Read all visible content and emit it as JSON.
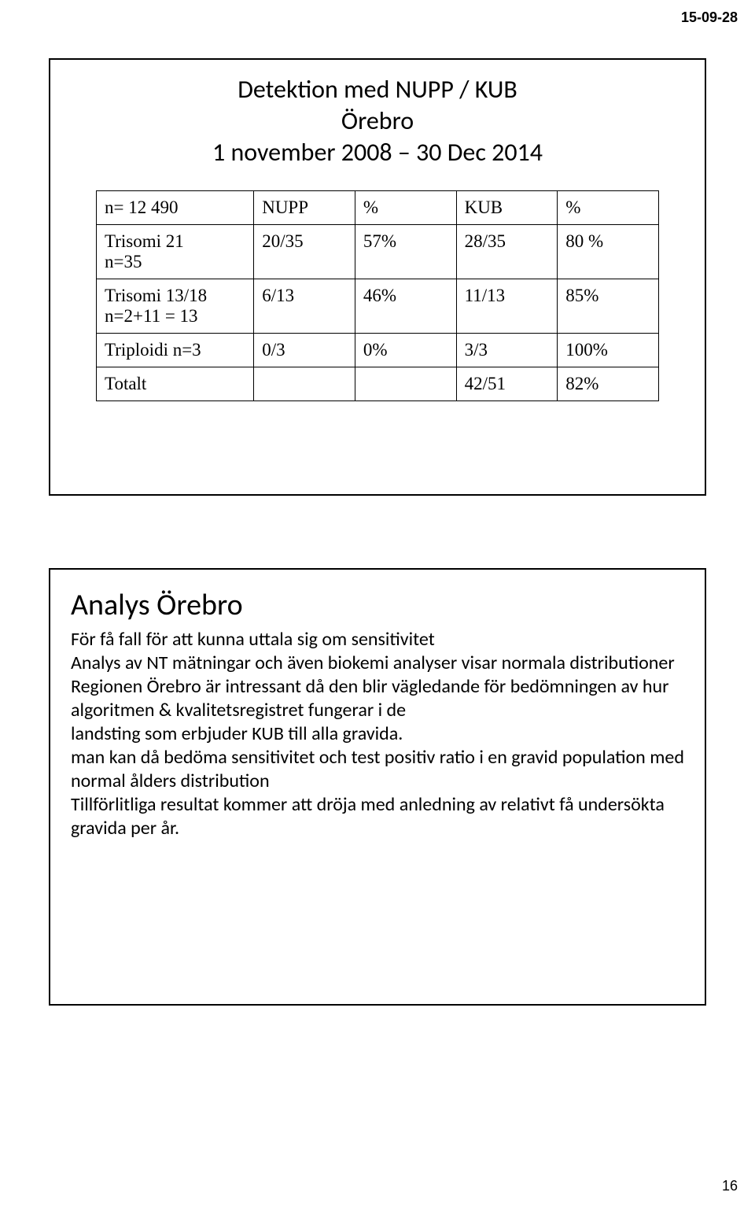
{
  "meta": {
    "date_header": "15-09-28",
    "page_number": "16"
  },
  "panel1": {
    "title_line1": "Detektion med  NUPP / KUB",
    "title_line2": "Örebro",
    "title_line3": "1 november 2008 – 30 Dec  2014",
    "table": {
      "headers": [
        "n= 12 490",
        "NUPP",
        "%",
        "KUB",
        "%"
      ],
      "rows": [
        {
          "label_l1": "Trisomi 21",
          "label_l2": "n=35",
          "c1": "20/35",
          "c2": "57%",
          "c3": "28/35",
          "c4": "80 %"
        },
        {
          "label_l1": "Trisomi 13/18",
          "label_l2": "n=2+11 = 13",
          "c1": "6/13",
          "c2": "46%",
          "c3": "11/13",
          "c4": "85%"
        },
        {
          "label_l1": "Triploidi n=3",
          "label_l2": "",
          "c1": "0/3",
          "c2": "0%",
          "c3": "3/3",
          "c4": "100%"
        },
        {
          "label_l1": "Totalt",
          "label_l2": "",
          "c1": "",
          "c2": "",
          "c3": "42/51",
          "c4": "82%"
        }
      ]
    }
  },
  "panel2": {
    "heading": "Analys Örebro",
    "lines": [
      "För få fall för att kunna uttala sig om sensitivitet",
      "Analys av NT mätningar och även  biokemi  analyser visar normala distributioner",
      "Regionen Örebro  är  intressant  då den  blir  vägledande  för bedömningen av hur algoritmen & kvalitetsregistret fungerar i de",
      " landsting som erbjuder  KUB till alla gravida.",
      " man kan då bedöma sensitivitet och test positiv ratio i en gravid population  med normal ålders distribution",
      "Tillförlitliga resultat kommer att dröja med anledning av relativt få undersökta gravida per år."
    ]
  },
  "style": {
    "background_color": "#ffffff",
    "border_color": "#000000",
    "title_fontsize_pt": 24,
    "table_fontsize_pt": 17,
    "heading_fontsize_pt": 28,
    "body_fontsize_pt": 18
  }
}
